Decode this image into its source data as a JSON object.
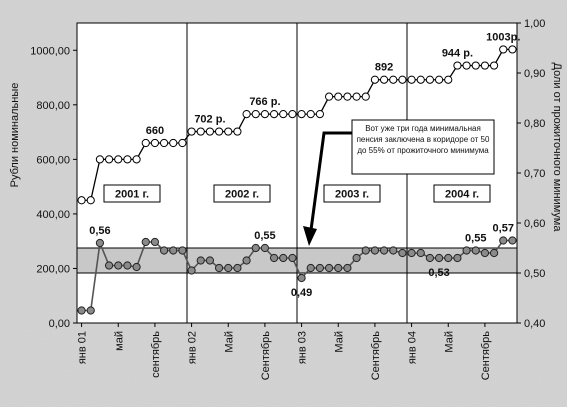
{
  "chart_data": {
    "type": "line",
    "x_tick_labels": [
      "янв 01",
      "май",
      "сентябрь",
      "янв 02",
      "Май",
      "Сентябрь",
      "янв 03",
      "Май",
      "Сентябрь",
      "янв 04",
      "Май",
      "Сентябрь"
    ],
    "y_left": {
      "label": "Рубли номинальные",
      "ticks": [
        "0,00",
        "200,00",
        "400,00",
        "600,00",
        "800,00",
        "1000,00"
      ],
      "range": [
        0,
        1100
      ]
    },
    "y_right": {
      "label": "Доли от прожиточного минимума",
      "ticks": [
        "0,40",
        "0,50",
        "0,60",
        "0,70",
        "0,80",
        "0,90",
        "1,00"
      ],
      "range": [
        0.4,
        1.0
      ]
    },
    "year_labels": [
      "2001 г.",
      "2002 г.",
      "2003 г.",
      "2004 г."
    ],
    "corridor": [
      0.5,
      0.55
    ],
    "series": [
      {
        "axis": "left",
        "values": [
          450,
          450,
          600,
          600,
          600,
          600,
          600,
          660,
          660,
          660,
          660,
          660,
          702,
          702,
          702,
          702,
          702,
          702,
          766,
          766,
          766,
          766,
          766,
          766,
          766,
          766,
          766,
          830,
          830,
          830,
          830,
          830,
          892,
          892,
          892,
          892,
          892,
          892,
          892,
          892,
          892,
          944,
          944,
          944,
          944,
          944,
          1003,
          1003
        ],
        "labels": [
          {
            "index": 8,
            "text": "660"
          },
          {
            "index": 14,
            "text": "702 р."
          },
          {
            "index": 20,
            "text": "766 р."
          },
          {
            "index": 33,
            "text": "892"
          },
          {
            "index": 41,
            "text": "944 р."
          },
          {
            "index": 46,
            "text": "1003р."
          }
        ]
      },
      {
        "axis": "right",
        "values": [
          0.425,
          0.425,
          0.56,
          0.515,
          0.515,
          0.515,
          0.512,
          0.562,
          0.562,
          0.545,
          0.545,
          0.545,
          0.505,
          0.525,
          0.525,
          0.51,
          0.51,
          0.51,
          0.525,
          0.55,
          0.55,
          0.53,
          0.53,
          0.53,
          0.49,
          0.51,
          0.51,
          0.51,
          0.51,
          0.51,
          0.53,
          0.545,
          0.545,
          0.545,
          0.545,
          0.54,
          0.54,
          0.54,
          0.53,
          0.53,
          0.53,
          0.53,
          0.545,
          0.545,
          0.54,
          0.54,
          0.565,
          0.565
        ],
        "labels": [
          {
            "index": 2,
            "text": "0,56"
          },
          {
            "index": 20,
            "text": "0,55"
          },
          {
            "index": 24,
            "text": "0,49"
          },
          {
            "index": 39,
            "text": "0,53"
          },
          {
            "index": 43,
            "text": "0,55"
          },
          {
            "index": 46,
            "text": "0,57"
          }
        ]
      }
    ],
    "annotation": "Вот уже три года минимальная пенсия заключена в коридоре от 50 до 55% от прожиточного минимума"
  }
}
